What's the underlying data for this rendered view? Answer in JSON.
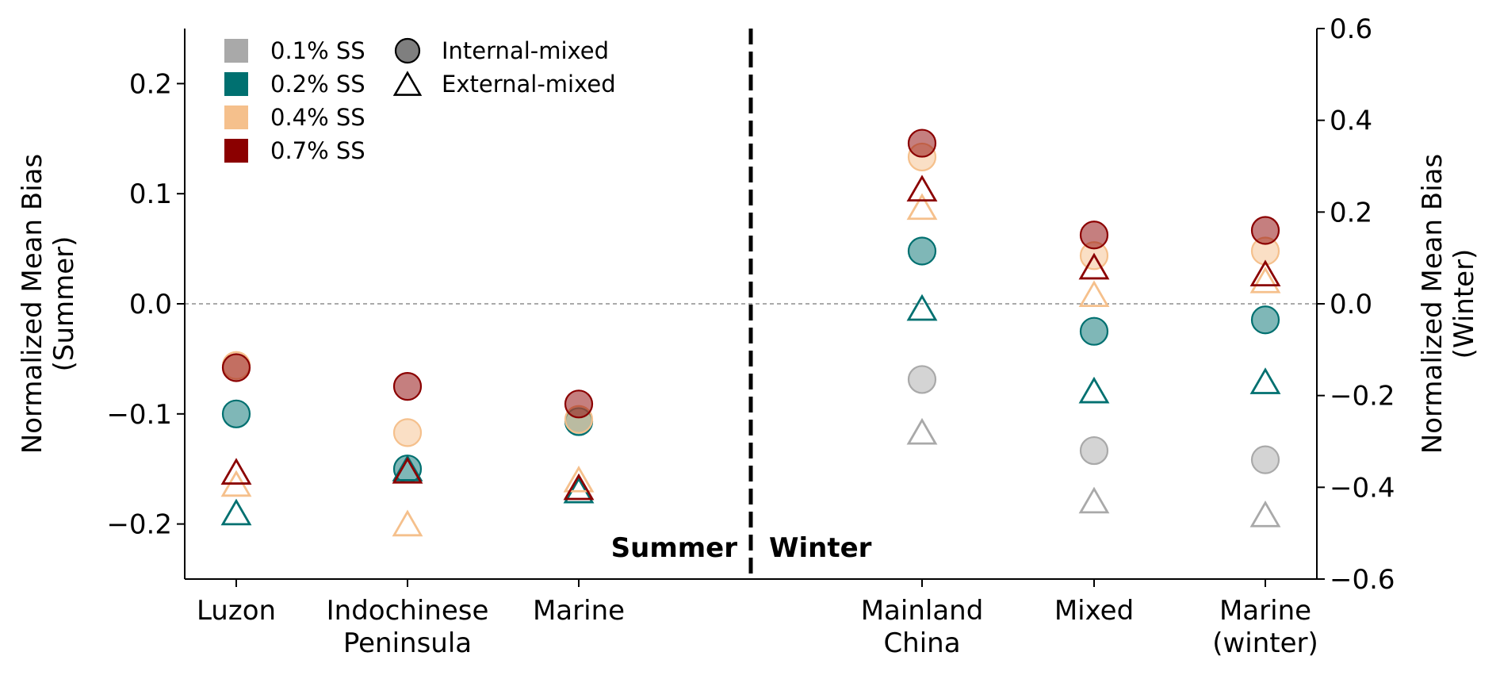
{
  "chart_data": {
    "type": "scatter",
    "xlabel": "",
    "ylabel_left": "Normalized Mean Bias\n(Summer)",
    "ylabel_right": "Normalized Mean Bias\n(Winter)",
    "ylim_left": [
      -0.25,
      0.25
    ],
    "ylim_right": [
      -0.6,
      0.6
    ],
    "yticks_left": [
      -0.2,
      -0.1,
      0.0,
      0.1,
      0.2
    ],
    "yticks_right": [
      -0.6,
      -0.4,
      -0.2,
      0.0,
      0.2,
      0.4,
      0.6
    ],
    "ytick_labels_left": [
      "−0.2",
      "−0.1",
      "0.0",
      "0.1",
      "0.2"
    ],
    "ytick_labels_right": [
      "−0.6",
      "−0.4",
      "−0.2",
      "0.0",
      "0.2",
      "0.4",
      "0.6"
    ],
    "zero_line": true,
    "grid": false,
    "legend_position": "top-left",
    "season_labels": [
      "Summer",
      "Winter"
    ],
    "summer_categories": [
      "Luzon",
      "Indochinese\nPeninsula",
      "Marine"
    ],
    "winter_categories": [
      "Mainland\nChina",
      "Mixed",
      "Marine\n(winter)"
    ],
    "legend_supersaturation": [
      {
        "name": "0.1% SS",
        "color": "#a9a9a9"
      },
      {
        "name": "0.2% SS",
        "color": "#007070"
      },
      {
        "name": "0.4% SS",
        "color": "#f5c08c"
      },
      {
        "name": "0.7% SS",
        "color": "#8b0000"
      }
    ],
    "legend_mixing": [
      {
        "name": "Internal-mixed",
        "marker": "circle"
      },
      {
        "name": "External-mixed",
        "marker": "triangle"
      }
    ],
    "summer_series": [
      {
        "ss": "0.2% SS",
        "mixing": "internal",
        "values": [
          -0.1,
          -0.15,
          -0.107
        ]
      },
      {
        "ss": "0.4% SS",
        "mixing": "internal",
        "values": [
          -0.056,
          -0.117,
          -0.105
        ]
      },
      {
        "ss": "0.7% SS",
        "mixing": "internal",
        "values": [
          -0.058,
          -0.075,
          -0.091
        ]
      },
      {
        "ss": "0.2% SS",
        "mixing": "external",
        "values": [
          -0.19,
          -0.15,
          -0.17
        ]
      },
      {
        "ss": "0.4% SS",
        "mixing": "external",
        "values": [
          -0.164,
          -0.2,
          -0.16
        ]
      },
      {
        "ss": "0.7% SS",
        "mixing": "external",
        "values": [
          -0.153,
          -0.152,
          -0.167
        ]
      }
    ],
    "winter_series": [
      {
        "ss": "0.1% SS",
        "mixing": "internal",
        "values": [
          -0.165,
          -0.32,
          -0.34
        ]
      },
      {
        "ss": "0.2% SS",
        "mixing": "internal",
        "values": [
          0.115,
          -0.06,
          -0.035
        ]
      },
      {
        "ss": "0.4% SS",
        "mixing": "internal",
        "values": [
          0.32,
          0.105,
          0.115
        ]
      },
      {
        "ss": "0.7% SS",
        "mixing": "internal",
        "values": [
          0.35,
          0.15,
          0.16
        ]
      },
      {
        "ss": "0.1% SS",
        "mixing": "external",
        "values": [
          -0.28,
          -0.43,
          -0.46
        ]
      },
      {
        "ss": "0.2% SS",
        "mixing": "external",
        "values": [
          -0.01,
          -0.19,
          -0.17
        ]
      },
      {
        "ss": "0.4% SS",
        "mixing": "external",
        "values": [
          0.21,
          0.02,
          0.05
        ]
      },
      {
        "ss": "0.7% SS",
        "mixing": "external",
        "values": [
          0.25,
          0.08,
          0.065
        ]
      }
    ]
  }
}
